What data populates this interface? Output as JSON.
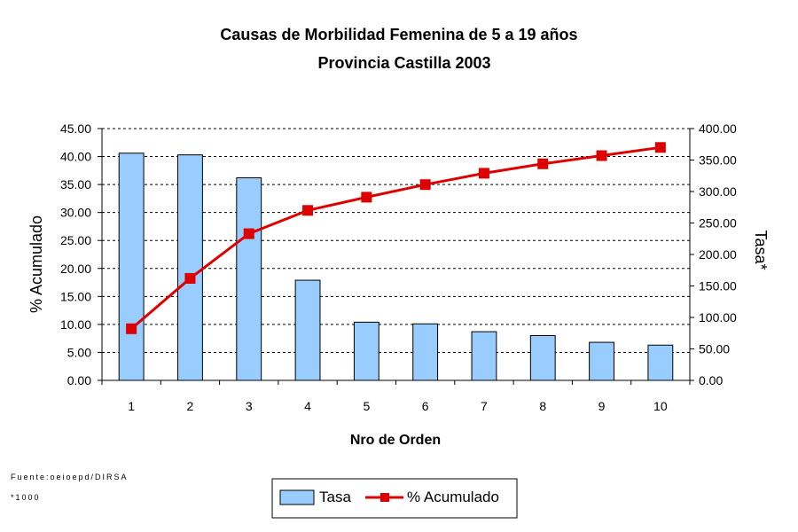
{
  "chart_data": {
    "type": "bar",
    "title": "Causas de Morbilidad Femenina de 5 a 19 años",
    "subtitle": "Provincia Castilla 2003",
    "xlabel": "Nro de Orden",
    "ylabel": "% Acumulado",
    "y2label": "Tasa*",
    "categories": [
      "1",
      "2",
      "3",
      "4",
      "5",
      "6",
      "7",
      "8",
      "9",
      "10"
    ],
    "ylim": [
      0,
      45
    ],
    "y2lim": [
      0,
      400
    ],
    "yticks": [
      "0.00",
      "5.00",
      "10.00",
      "15.00",
      "20.00",
      "25.00",
      "30.00",
      "35.00",
      "40.00",
      "45.00"
    ],
    "y2ticks": [
      "0.00",
      "50.00",
      "100.00",
      "150.00",
      "200.00",
      "250.00",
      "300.00",
      "350.00",
      "400.00"
    ],
    "grid": true,
    "legend_position": "bottom",
    "series": [
      {
        "name": "Tasa",
        "type": "bar",
        "axis": "left",
        "color": "#99ccff",
        "values": [
          40.6,
          40.3,
          36.2,
          17.9,
          10.4,
          10.1,
          8.7,
          8.0,
          6.8,
          6.3
        ]
      },
      {
        "name": "% Acumulado",
        "type": "line",
        "axis": "right",
        "color": "#dd0000",
        "values": [
          82,
          162,
          233,
          270,
          291,
          311,
          329,
          344,
          357,
          370
        ]
      }
    ]
  },
  "footnotes": {
    "source": "Fuente:oeioepd/DIRSA",
    "note": "*1000"
  }
}
